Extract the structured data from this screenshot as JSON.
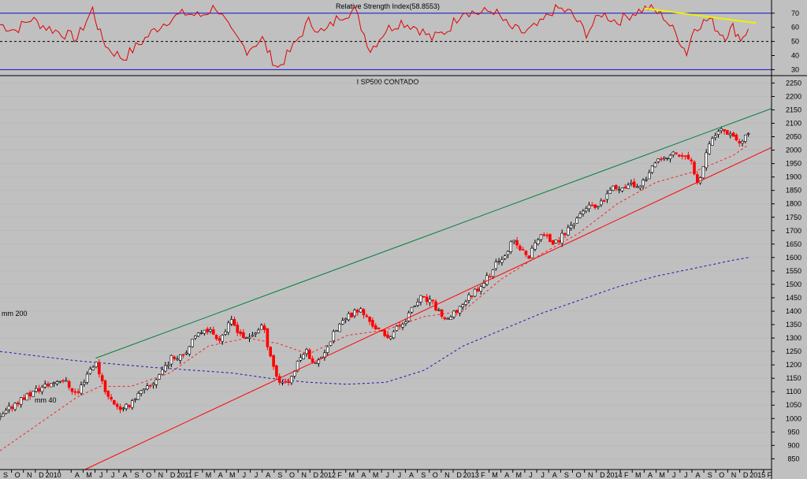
{
  "chart_data": [
    {
      "type": "line",
      "title": "Relative Strength Index(58.8553)",
      "y_ticks": [
        30,
        40,
        50,
        60,
        70
      ],
      "ylim": [
        28,
        76
      ],
      "overbought": 70,
      "oversold": 30,
      "midline": 50,
      "colors": {
        "rsi": "#e00000",
        "bands": "#1010d0",
        "trend": "#f0f000"
      },
      "rsi_trendline": {
        "from": [
          0.835,
          73.5
        ],
        "to": [
          0.98,
          63
        ]
      },
      "rsi_series": [
        [
          0.0,
          62
        ],
        [
          0.02,
          58
        ],
        [
          0.04,
          66
        ],
        [
          0.06,
          60
        ],
        [
          0.08,
          56
        ],
        [
          0.1,
          52
        ],
        [
          0.12,
          73
        ],
        [
          0.13,
          55
        ],
        [
          0.14,
          45
        ],
        [
          0.16,
          38
        ],
        [
          0.18,
          48
        ],
        [
          0.2,
          58
        ],
        [
          0.22,
          66
        ],
        [
          0.24,
          70
        ],
        [
          0.26,
          68
        ],
        [
          0.28,
          75
        ],
        [
          0.3,
          56
        ],
        [
          0.32,
          44
        ],
        [
          0.34,
          52
        ],
        [
          0.35,
          40
        ],
        [
          0.36,
          31
        ],
        [
          0.38,
          46
        ],
        [
          0.4,
          64
        ],
        [
          0.42,
          56
        ],
        [
          0.44,
          68
        ],
        [
          0.46,
          72
        ],
        [
          0.48,
          44
        ],
        [
          0.5,
          58
        ],
        [
          0.52,
          64
        ],
        [
          0.54,
          60
        ],
        [
          0.56,
          52
        ],
        [
          0.58,
          58
        ],
        [
          0.6,
          72
        ],
        [
          0.62,
          70
        ],
        [
          0.64,
          72
        ],
        [
          0.66,
          60
        ],
        [
          0.68,
          56
        ],
        [
          0.7,
          62
        ],
        [
          0.72,
          74
        ],
        [
          0.74,
          70
        ],
        [
          0.76,
          56
        ],
        [
          0.78,
          70
        ],
        [
          0.8,
          64
        ],
        [
          0.82,
          70
        ],
        [
          0.84,
          74
        ],
        [
          0.86,
          68
        ],
        [
          0.88,
          52
        ],
        [
          0.89,
          42
        ],
        [
          0.9,
          60
        ],
        [
          0.92,
          66
        ],
        [
          0.93,
          58
        ],
        [
          0.94,
          54
        ],
        [
          0.95,
          60
        ],
        [
          0.96,
          52
        ],
        [
          0.97,
          59
        ]
      ]
    },
    {
      "type": "line",
      "title": "I SP500 CONTADO",
      "y_ticks": [
        850,
        900,
        950,
        1000,
        1050,
        1100,
        1150,
        1200,
        1250,
        1300,
        1350,
        1400,
        1450,
        1500,
        1550,
        1600,
        1650,
        1700,
        1750,
        1800,
        1850,
        1900,
        1950,
        2000,
        2050,
        2100,
        2150,
        2200,
        2250
      ],
      "ylim": [
        810,
        2260
      ],
      "x_ticks": [
        "S",
        "O",
        "N",
        "D",
        "2010",
        "",
        "A",
        "M",
        "J",
        "J",
        "A",
        "S",
        "O",
        "N",
        "D",
        "2011",
        "F",
        "M",
        "A",
        "M",
        "J",
        "J",
        "A",
        "S",
        "O",
        "N",
        "D",
        "2012",
        "F",
        "M",
        "A",
        "M",
        "J",
        "J",
        "A",
        "S",
        "O",
        "N",
        "D",
        "2013",
        "F",
        "M",
        "A",
        "M",
        "J",
        "J",
        "A",
        "S",
        "O",
        "N",
        "D",
        "2014",
        "F",
        "M",
        "A",
        "M",
        "J",
        "J",
        "A",
        "S",
        "O",
        "N",
        "D",
        "2015",
        "F"
      ],
      "annotations": [
        "mm 200",
        "mm 40"
      ],
      "colors": {
        "up": "#000000",
        "down": "#ff0000",
        "mm40": "#ff2020",
        "mm200": "#2a10b0",
        "upper_trend": "#008040",
        "lower_trend": "#ff0000"
      },
      "price_path": [
        [
          0.0,
          1000
        ],
        [
          0.02,
          1060
        ],
        [
          0.05,
          1110
        ],
        [
          0.08,
          1150
        ],
        [
          0.1,
          1090
        ],
        [
          0.115,
          1180
        ],
        [
          0.124,
          1210
        ],
        [
          0.14,
          1080
        ],
        [
          0.16,
          1030
        ],
        [
          0.175,
          1080
        ],
        [
          0.195,
          1120
        ],
        [
          0.22,
          1220
        ],
        [
          0.24,
          1250
        ],
        [
          0.265,
          1340
        ],
        [
          0.285,
          1300
        ],
        [
          0.3,
          1360
        ],
        [
          0.32,
          1290
        ],
        [
          0.34,
          1350
        ],
        [
          0.36,
          1140
        ],
        [
          0.375,
          1140
        ],
        [
          0.395,
          1260
        ],
        [
          0.41,
          1200
        ],
        [
          0.44,
          1350
        ],
        [
          0.465,
          1410
        ],
        [
          0.48,
          1360
        ],
        [
          0.5,
          1300
        ],
        [
          0.52,
          1350
        ],
        [
          0.545,
          1450
        ],
        [
          0.56,
          1430
        ],
        [
          0.58,
          1360
        ],
        [
          0.6,
          1430
        ],
        [
          0.63,
          1520
        ],
        [
          0.665,
          1660
        ],
        [
          0.685,
          1600
        ],
        [
          0.7,
          1690
        ],
        [
          0.72,
          1650
        ],
        [
          0.74,
          1720
        ],
        [
          0.76,
          1790
        ],
        [
          0.775,
          1780
        ],
        [
          0.79,
          1850
        ],
        [
          0.81,
          1870
        ],
        [
          0.83,
          1870
        ],
        [
          0.85,
          1950
        ],
        [
          0.875,
          1990
        ],
        [
          0.895,
          1960
        ],
        [
          0.905,
          1880
        ],
        [
          0.92,
          2040
        ],
        [
          0.935,
          2080
        ],
        [
          0.95,
          2060
        ],
        [
          0.96,
          2020
        ],
        [
          0.97,
          2060
        ]
      ],
      "mm40_path": [
        [
          0.0,
          880
        ],
        [
          0.05,
          980
        ],
        [
          0.1,
          1080
        ],
        [
          0.13,
          1120
        ],
        [
          0.17,
          1120
        ],
        [
          0.22,
          1170
        ],
        [
          0.27,
          1270
        ],
        [
          0.32,
          1300
        ],
        [
          0.36,
          1280
        ],
        [
          0.4,
          1240
        ],
        [
          0.45,
          1310
        ],
        [
          0.5,
          1330
        ],
        [
          0.55,
          1380
        ],
        [
          0.6,
          1400
        ],
        [
          0.65,
          1520
        ],
        [
          0.7,
          1610
        ],
        [
          0.75,
          1690
        ],
        [
          0.8,
          1800
        ],
        [
          0.85,
          1880
        ],
        [
          0.9,
          1920
        ],
        [
          0.95,
          1980
        ],
        [
          0.97,
          2020
        ]
      ],
      "mm200_path": [
        [
          0.0,
          1250
        ],
        [
          0.1,
          1215
        ],
        [
          0.2,
          1190
        ],
        [
          0.3,
          1170
        ],
        [
          0.35,
          1150
        ],
        [
          0.4,
          1135
        ],
        [
          0.45,
          1128
        ],
        [
          0.5,
          1135
        ],
        [
          0.55,
          1180
        ],
        [
          0.6,
          1270
        ],
        [
          0.65,
          1330
        ],
        [
          0.7,
          1390
        ],
        [
          0.75,
          1440
        ],
        [
          0.8,
          1490
        ],
        [
          0.85,
          1530
        ],
        [
          0.9,
          1560
        ],
        [
          0.95,
          1590
        ],
        [
          0.97,
          1600
        ]
      ],
      "upper_trendline": {
        "from": [
          0.124,
          1225
        ],
        "to": [
          1.0,
          2155
        ]
      },
      "lower_trendline": {
        "from": [
          0.11,
          810
        ],
        "to": [
          1.0,
          2010
        ]
      }
    }
  ]
}
